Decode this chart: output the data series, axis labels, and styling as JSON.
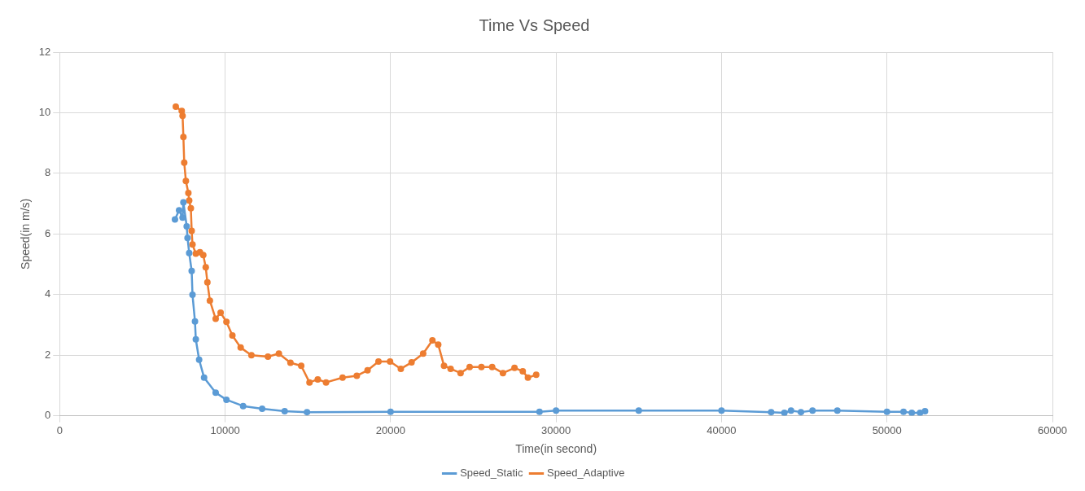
{
  "chart_data": {
    "type": "line",
    "title": "Time Vs Speed",
    "xlabel": "Time(in second)",
    "ylabel": "Speed(in m/s)",
    "xlim": [
      0,
      60000
    ],
    "xticks": [
      0,
      10000,
      20000,
      30000,
      40000,
      50000,
      60000
    ],
    "ylim": [
      0,
      12
    ],
    "yticks": [
      0,
      2,
      4,
      6,
      8,
      10,
      12
    ],
    "grid": true,
    "legend": "bottom",
    "marker": "circle",
    "line_style": "solid",
    "series": [
      {
        "name": "Speed_Static",
        "color": "#5b9bd5",
        "x": [
          6970,
          7220,
          7430,
          7480,
          7680,
          7730,
          7830,
          7980,
          8030,
          8180,
          8230,
          8430,
          8730,
          9430,
          10080,
          11090,
          12240,
          13600,
          14950,
          20000,
          29000,
          30000,
          35000,
          40000,
          43000,
          43800,
          44200,
          44800,
          45500,
          47000,
          50000,
          51000,
          51500,
          52000,
          52300
        ],
        "values": [
          6.48,
          6.78,
          6.54,
          7.04,
          6.25,
          5.87,
          5.37,
          4.78,
          3.99,
          3.11,
          2.52,
          1.85,
          1.26,
          0.76,
          0.53,
          0.32,
          0.23,
          0.15,
          0.12,
          0.13,
          0.13,
          0.17,
          0.17,
          0.17,
          0.12,
          0.1,
          0.17,
          0.12,
          0.17,
          0.17,
          0.13,
          0.13,
          0.1,
          0.1,
          0.15
        ]
      },
      {
        "name": "Speed_Adaptive",
        "color": "#ed7d31",
        "x": [
          7020,
          7380,
          7430,
          7480,
          7530,
          7630,
          7780,
          7830,
          7930,
          7980,
          8030,
          8230,
          8480,
          8680,
          8830,
          8930,
          9080,
          9430,
          9730,
          10080,
          10440,
          10940,
          11590,
          12590,
          13250,
          13950,
          14600,
          15100,
          15600,
          16100,
          17100,
          17960,
          18610,
          19270,
          19970,
          20620,
          21270,
          21970,
          22530,
          22880,
          23230,
          23630,
          24230,
          24780,
          25490,
          26140,
          26790,
          27490,
          27990,
          28300,
          28800
        ],
        "values": [
          10.2,
          10.06,
          9.9,
          9.2,
          8.35,
          7.75,
          7.35,
          7.1,
          6.85,
          6.1,
          5.65,
          5.35,
          5.4,
          5.3,
          4.9,
          4.4,
          3.8,
          3.2,
          3.4,
          3.1,
          2.65,
          2.25,
          2.0,
          1.95,
          2.05,
          1.75,
          1.65,
          1.1,
          1.2,
          1.1,
          1.26,
          1.32,
          1.5,
          1.79,
          1.79,
          1.55,
          1.76,
          2.05,
          2.49,
          2.35,
          1.65,
          1.55,
          1.41,
          1.61,
          1.61,
          1.61,
          1.41,
          1.58,
          1.47,
          1.26,
          1.35
        ]
      }
    ]
  }
}
